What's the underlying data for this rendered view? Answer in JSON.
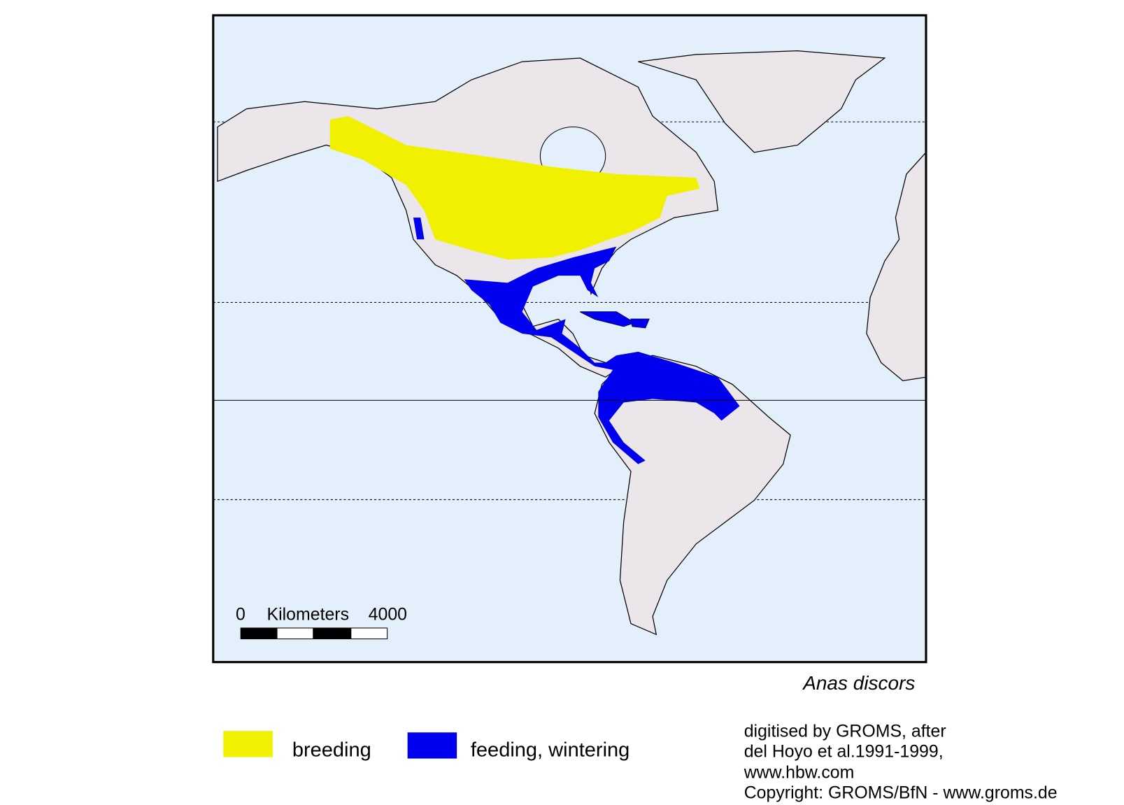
{
  "map": {
    "species": "Anas discors",
    "scale_bar": {
      "start": "0",
      "unit": "Kilometers",
      "end": "4000"
    },
    "legend": [
      {
        "name": "breeding",
        "color": "#f0f000"
      },
      {
        "name": "feeding, wintering",
        "color": "#0000ee"
      }
    ],
    "credits": [
      "digitised by GROMS, after",
      "del Hoyo et al.1991-1999,",
      "www.hbw.com",
      "Copyright: GROMS/BfN - www.groms.de"
    ]
  }
}
